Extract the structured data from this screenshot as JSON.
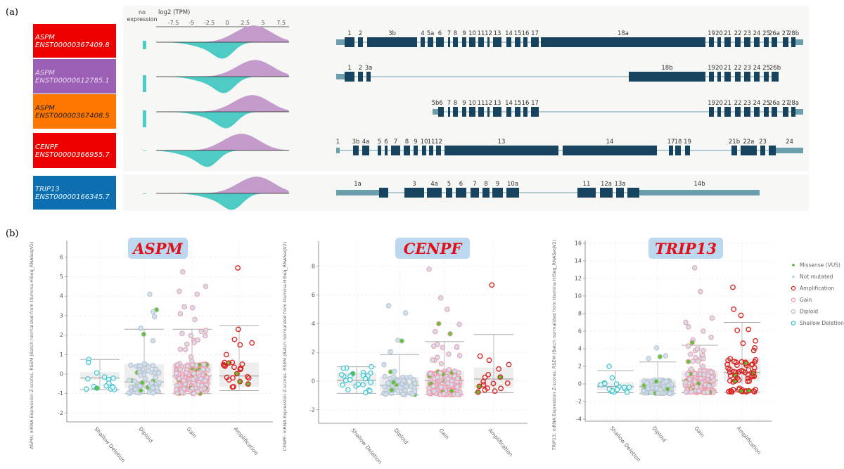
{
  "panel_a": {
    "label": "(a)",
    "axis_title": "log2 (TPM)",
    "no_expression_label": [
      "no",
      "expression"
    ],
    "ticks": [
      "-7.5",
      "-5",
      "-2.5",
      "0",
      "2.5",
      "5",
      "7.5"
    ],
    "tick_values": [
      -7.5,
      -5,
      -2.5,
      0,
      2.5,
      5,
      7.5
    ],
    "xlim": [
      -9.9,
      8.6
    ],
    "colors": {
      "upper_density": "#c49ccb",
      "lower_density": "#4ecbc4",
      "exon": "#17435e",
      "utr": "#6b9fae",
      "intron": "#6b9fae"
    },
    "transcripts": [
      {
        "gene": "ASPM",
        "id": "ENST00000367409.8",
        "color": "#ee0000",
        "text_color": "#ffffff",
        "upper_peak": 4.2,
        "lower_peak": -0.5,
        "no_expression": true,
        "exon_labels": [
          "1",
          "2",
          "3b",
          "4",
          "5a",
          "6",
          "7",
          "8",
          "9",
          "10",
          "11",
          "12",
          "13",
          "14",
          "15",
          "16",
          "17",
          "18a",
          "19",
          "20",
          "21",
          "22",
          "23",
          "24",
          "25",
          "26a",
          "27",
          "28b"
        ]
      },
      {
        "gene": "ASPM",
        "id": "ENST00000612785.1",
        "color": "#9b5fb5",
        "text_color": "#e8d8f0",
        "upper_peak": 4.4,
        "lower_peak": -0.3,
        "no_expression": true,
        "exon_labels": [
          "1",
          "2",
          "3a",
          "18b",
          "19",
          "20",
          "21",
          "22",
          "23",
          "24",
          "25",
          "26b"
        ]
      },
      {
        "gene": "ASPM",
        "id": "ENST00000367408.5",
        "color": "#ff7700",
        "text_color": "#222222",
        "upper_peak": 4.0,
        "lower_peak": 0.0,
        "no_expression": true,
        "exon_labels": [
          "5b",
          "6",
          "7",
          "8",
          "9",
          "10",
          "11",
          "12",
          "13",
          "14",
          "15",
          "16",
          "17",
          "19",
          "20",
          "21",
          "22",
          "23",
          "24",
          "25",
          "26a",
          "27",
          "28a"
        ]
      },
      {
        "gene": "CENPF",
        "id": "ENST00000366955.7",
        "color": "#ee0000",
        "text_color": "#ffffff",
        "upper_peak": 2.5,
        "lower_peak": -2.6,
        "no_expression": false,
        "exon_labels": [
          "1",
          "3b",
          "4a",
          "5",
          "6",
          "7",
          "8",
          "9",
          "10",
          "11",
          "12",
          "13",
          "14",
          "17",
          "18",
          "19",
          "21b",
          "22a",
          "23",
          "24"
        ]
      },
      {
        "gene": "TRIP13",
        "id": "ENST00000166345.7",
        "color": "#0d6fb0",
        "text_color": "#e8f2ff",
        "upper_peak": 4.6,
        "lower_peak": 0.8,
        "no_expression": false,
        "exon_labels": [
          "1a",
          "3",
          "4a",
          "5",
          "6",
          "7",
          "8",
          "9",
          "10a",
          "11",
          "12a",
          "13a",
          "14b"
        ]
      }
    ]
  },
  "panel_b": {
    "label": "(b)"
  },
  "chart_data": [
    {
      "type": "box+scatter",
      "title": "ASPM",
      "ylabel": "ASPM: mRNA Expression Z-scores, RSEM (Batch normalized from Illumina HiSeq_RNASeqV2)",
      "categories": [
        "Shallow Deletion",
        "Diploid",
        "Gain",
        "Amplification"
      ],
      "yticks": [
        "6",
        "5",
        "4",
        "3",
        "2",
        "1",
        "0",
        "-1",
        "-2"
      ],
      "ylim": [
        -2.4,
        6.9
      ],
      "grid": true,
      "boxes": [
        {
          "whisker_low": -0.8,
          "q1": -0.3,
          "median": -0.2,
          "q3": 0.1,
          "whisker_high": 0.75
        },
        {
          "whisker_low": -1.0,
          "q1": -0.7,
          "median": -0.4,
          "q3": 0.5,
          "whisker_high": 2.3
        },
        {
          "whisker_low": -1.0,
          "q1": -0.6,
          "median": -0.1,
          "q3": 0.55,
          "whisker_high": 2.3
        },
        {
          "whisker_low": -0.85,
          "q1": -0.65,
          "median": -0.1,
          "q3": 0.6,
          "whisker_high": 2.5
        }
      ],
      "high_points": [
        [
          0.75,
          0.6
        ],
        [
          4.1,
          3.3,
          3.2,
          2.95,
          2.35
        ],
        [
          5.25,
          4.5,
          4.25,
          4.1,
          3.45,
          3.4,
          3.1,
          2.8
        ],
        [
          5.45,
          1.6,
          1.5,
          0.6,
          0.3
        ]
      ]
    },
    {
      "type": "box+scatter",
      "title": "CENPF",
      "ylabel": "CENPF: mRNA Expression Z-scores, RSEM (Batch normalized from Illumina HiSeq_RNASeqV2)",
      "categories": [
        "Shallow Deletion",
        "Diploid",
        "Gain",
        "Amplification"
      ],
      "yticks": [
        "8",
        "6",
        "4",
        "2",
        "0",
        "-2"
      ],
      "ylim": [
        -3.0,
        9.7
      ],
      "grid": true,
      "boxes": [
        {
          "whisker_low": -0.85,
          "q1": -0.35,
          "median": 0.05,
          "q3": 0.6,
          "whisker_high": 1.0
        },
        {
          "whisker_low": -0.95,
          "q1": -0.65,
          "median": -0.3,
          "q3": 0.3,
          "whisker_high": 1.85
        },
        {
          "whisker_low": -0.95,
          "q1": -0.5,
          "median": 0.05,
          "q3": 0.7,
          "whisker_high": 2.75
        },
        {
          "whisker_low": -0.8,
          "q1": -0.5,
          "median": 0.15,
          "q3": 0.95,
          "whisker_high": 3.25
        }
      ],
      "high_points": [
        [
          1.0,
          0.9
        ],
        [
          5.25,
          4.75,
          2.85,
          2.8,
          2.05
        ],
        [
          7.8,
          5.8,
          5.0,
          4.0,
          3.95,
          3.45,
          3.3
        ],
        [
          6.7,
          1.45,
          1.15,
          0.85
        ]
      ]
    },
    {
      "type": "box+scatter",
      "title": "TRIP13",
      "ylabel": "TRIP13: mRNA Expression Z-scores, RSEM (Batch normalized from Illumina HiSeq_RNASeqV2)",
      "categories": [
        "Shallow Deletion",
        "Diploid",
        "Gain",
        "Amplification"
      ],
      "yticks": [
        "16",
        "14",
        "12",
        "10",
        "8",
        "6",
        "4",
        "2",
        "0",
        "-2",
        "-4"
      ],
      "ylim": [
        -4.2,
        16.0
      ],
      "grid": true,
      "boxes": [
        {
          "whisker_low": -1.0,
          "q1": -0.7,
          "median": -0.3,
          "q3": 0.2,
          "whisker_high": 1.5
        },
        {
          "whisker_low": -1.1,
          "q1": -0.8,
          "median": -0.3,
          "q3": 0.5,
          "whisker_high": 2.5
        },
        {
          "whisker_low": -1.0,
          "q1": -0.3,
          "median": 0.4,
          "q3": 1.5,
          "whisker_high": 4.4
        },
        {
          "whisker_low": -0.95,
          "q1": 0.3,
          "median": 1.3,
          "q3": 2.9,
          "whisker_high": 7.0
        }
      ],
      "high_points": [
        [
          2.0,
          0.7
        ],
        [
          4.1,
          3.2,
          3.1,
          2.9
        ],
        [
          13.2,
          10.5,
          7.5,
          7.0,
          6.5,
          6.0,
          5.3,
          5.0,
          4.7
        ],
        [
          11.0,
          8.5,
          7.8,
          6.2,
          6.1,
          4.9,
          4.1,
          3.8
        ]
      ],
      "legend": {
        "placement": "right",
        "items": [
          {
            "label": "Missense (VUS)",
            "color": "#44b52a",
            "style": "filled-dot"
          },
          {
            "label": "Not mutated",
            "color": "#a8d0ea",
            "style": "small-dot"
          },
          {
            "label": "Amplification",
            "color": "#d81e1a",
            "style": "ring"
          },
          {
            "label": "Gain",
            "color": "#f29aaa",
            "style": "ring"
          },
          {
            "label": "Diploid",
            "color": "#b4b8bc",
            "style": "ring"
          },
          {
            "label": "Shallow Deletion",
            "color": "#2cc0cc",
            "style": "ring"
          }
        ]
      }
    }
  ],
  "category_colors": {
    "Shallow Deletion": "#2cc0cc",
    "Diploid": "#b4bcc4",
    "Gain": "#f29aaa",
    "Amplification": "#d81e1a",
    "missense": "#5cc02c",
    "not_mutated_fill": "#cfe0ee",
    "title_box": "#bcd8ee"
  }
}
